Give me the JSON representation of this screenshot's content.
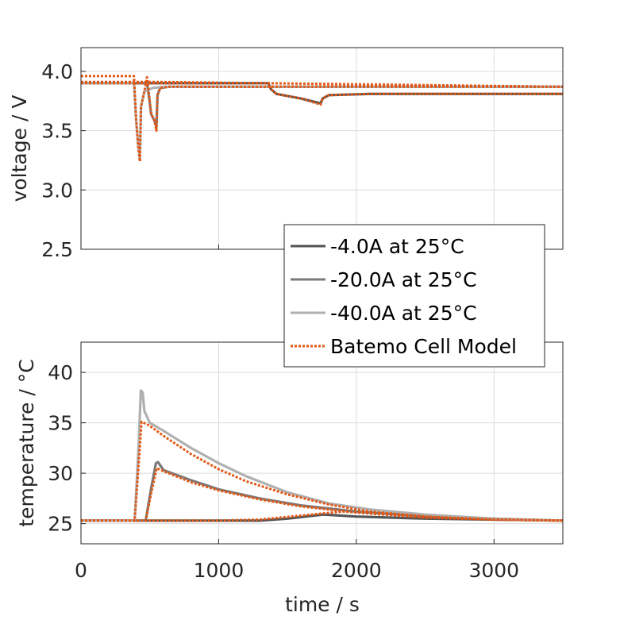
{
  "chart_data": [
    {
      "type": "line",
      "name": "voltage",
      "ylabel": "voltage / V",
      "xlabel": "",
      "xlim": [
        0,
        3500
      ],
      "ylim": [
        2.5,
        4.2
      ],
      "xticks": [
        0,
        1000,
        2000,
        3000
      ],
      "yticks": [
        2.5,
        3.0,
        3.5,
        4.0
      ],
      "ytick_labels": [
        "2.5",
        "3.0",
        "3.5",
        "4.0"
      ],
      "grid": true,
      "series": [
        {
          "name": "-4.0A at 25°C",
          "color": "#545454",
          "style": "solid",
          "points": [
            [
              0,
              3.9
            ],
            [
              1360,
              3.9
            ],
            [
              1380,
              3.85
            ],
            [
              1420,
              3.81
            ],
            [
              1600,
              3.77
            ],
            [
              1740,
              3.73
            ],
            [
              1755,
              3.77
            ],
            [
              1800,
              3.8
            ],
            [
              2100,
              3.81
            ],
            [
              3500,
              3.81
            ]
          ]
        },
        {
          "name": "-20.0A at 25°C",
          "color": "#7a7a7a",
          "style": "solid",
          "points": [
            [
              0,
              3.9
            ],
            [
              480,
              3.9
            ],
            [
              495,
              3.78
            ],
            [
              510,
              3.64
            ],
            [
              535,
              3.58
            ],
            [
              548,
              3.53
            ],
            [
              556,
              3.8
            ],
            [
              575,
              3.86
            ],
            [
              640,
              3.87
            ],
            [
              3500,
              3.87
            ]
          ]
        },
        {
          "name": "-40.0A at 25°C",
          "color": "#b0b0b0",
          "style": "solid",
          "points": [
            [
              0,
              3.9
            ],
            [
              385,
              3.9
            ],
            [
              400,
              3.6
            ],
            [
              415,
              3.38
            ],
            [
              428,
              3.26
            ],
            [
              436,
              3.7
            ],
            [
              460,
              3.83
            ],
            [
              520,
              3.86
            ],
            [
              600,
              3.87
            ],
            [
              3500,
              3.87
            ]
          ]
        },
        {
          "name": "Batemo Cell Model",
          "color": "#E35714",
          "style": "dotted",
          "points": [
            [
              0,
              3.96
            ],
            [
              385,
              3.96
            ],
            [
              400,
              3.6
            ],
            [
              415,
              3.38
            ],
            [
              428,
              3.24
            ],
            [
              436,
              3.7
            ],
            [
              460,
              3.83
            ],
            [
              480,
              3.95
            ],
            [
              495,
              3.8
            ],
            [
              510,
              3.64
            ],
            [
              535,
              3.58
            ],
            [
              548,
              3.5
            ],
            [
              556,
              3.8
            ],
            [
              575,
              3.86
            ],
            [
              640,
              3.87
            ],
            [
              3500,
              3.87
            ]
          ],
          "extra_paths": [
            [
              [
                0,
                3.9
              ],
              [
                1360,
                3.9
              ],
              [
                1380,
                3.85
              ],
              [
                1420,
                3.81
              ],
              [
                1600,
                3.77
              ],
              [
                1740,
                3.72
              ],
              [
                1755,
                3.77
              ],
              [
                1800,
                3.8
              ],
              [
                2100,
                3.81
              ],
              [
                3500,
                3.81
              ]
            ],
            [
              [
                0,
                3.91
              ],
              [
                600,
                3.91
              ],
              [
                3500,
                3.87
              ]
            ]
          ]
        }
      ]
    },
    {
      "type": "line",
      "name": "temperature",
      "ylabel": "temperature / °C",
      "xlabel": "time / s",
      "xlim": [
        0,
        3500
      ],
      "ylim": [
        23,
        43
      ],
      "xticks": [
        0,
        1000,
        2000,
        3000
      ],
      "xtick_labels": [
        "0",
        "1000",
        "2000",
        "3000"
      ],
      "yticks": [
        25,
        30,
        35,
        40
      ],
      "ytick_labels": [
        "25",
        "30",
        "35",
        "40"
      ],
      "grid": true,
      "series": [
        {
          "name": "-4.0A at 25°C",
          "color": "#545454",
          "style": "solid",
          "points": [
            [
              0,
              25.3
            ],
            [
              1300,
              25.3
            ],
            [
              1500,
              25.5
            ],
            [
              1760,
              25.9
            ],
            [
              2000,
              25.7
            ],
            [
              2500,
              25.5
            ],
            [
              3000,
              25.4
            ],
            [
              3500,
              25.3
            ]
          ]
        },
        {
          "name": "-20.0A at 25°C",
          "color": "#7a7a7a",
          "style": "solid",
          "points": [
            [
              0,
              25.3
            ],
            [
              470,
              25.3
            ],
            [
              510,
              28.5
            ],
            [
              545,
              31.0
            ],
            [
              560,
              31.1
            ],
            [
              600,
              30.3
            ],
            [
              800,
              29.3
            ],
            [
              1000,
              28.4
            ],
            [
              1300,
              27.5
            ],
            [
              1600,
              26.8
            ],
            [
              2000,
              26.2
            ],
            [
              2500,
              25.7
            ],
            [
              3000,
              25.5
            ],
            [
              3500,
              25.3
            ]
          ]
        },
        {
          "name": "-40.0A at 25°C",
          "color": "#b0b0b0",
          "style": "solid",
          "points": [
            [
              0,
              25.3
            ],
            [
              390,
              25.3
            ],
            [
              420,
              33.0
            ],
            [
              435,
              38.2
            ],
            [
              448,
              38.0
            ],
            [
              460,
              36.2
            ],
            [
              500,
              35.0
            ],
            [
              600,
              34.2
            ],
            [
              800,
              32.5
            ],
            [
              1000,
              31.0
            ],
            [
              1200,
              29.7
            ],
            [
              1500,
              28.1
            ],
            [
              1800,
              27.0
            ],
            [
              2100,
              26.4
            ],
            [
              2500,
              25.9
            ],
            [
              3000,
              25.5
            ],
            [
              3500,
              25.3
            ]
          ]
        },
        {
          "name": "Batemo Cell Model",
          "color": "#E35714",
          "style": "dotted",
          "points": [
            [
              0,
              25.3
            ],
            [
              390,
              25.3
            ],
            [
              420,
              31.0
            ],
            [
              440,
              35.1
            ],
            [
              500,
              34.7
            ],
            [
              600,
              33.7
            ],
            [
              800,
              31.9
            ],
            [
              1000,
              30.4
            ],
            [
              1200,
              29.2
            ],
            [
              1500,
              27.9
            ],
            [
              1800,
              26.9
            ],
            [
              2100,
              26.2
            ],
            [
              2500,
              25.7
            ],
            [
              3000,
              25.4
            ],
            [
              3500,
              25.3
            ]
          ],
          "extra_paths": [
            [
              [
                0,
                25.3
              ],
              [
                470,
                25.3
              ],
              [
                510,
                28.0
              ],
              [
                550,
                30.5
              ],
              [
                600,
                30.2
              ],
              [
                800,
                29.1
              ],
              [
                1000,
                28.3
              ],
              [
                1300,
                27.4
              ],
              [
                1600,
                26.7
              ],
              [
                2000,
                26.1
              ],
              [
                2500,
                25.6
              ],
              [
                3000,
                25.4
              ],
              [
                3500,
                25.3
              ]
            ],
            [
              [
                0,
                25.3
              ],
              [
                1000,
                25.3
              ],
              [
                1300,
                25.4
              ],
              [
                1600,
                25.8
              ],
              [
                1900,
                26.2
              ],
              [
                2200,
                26.0
              ],
              [
                2600,
                25.6
              ],
              [
                3000,
                25.4
              ],
              [
                3500,
                25.3
              ]
            ]
          ]
        }
      ]
    }
  ],
  "legend": {
    "placement": "center-right",
    "entries": [
      {
        "label": "-4.0A at 25°C",
        "color": "#545454",
        "style": "solid"
      },
      {
        "label": "-20.0A at 25°C",
        "color": "#7a7a7a",
        "style": "solid"
      },
      {
        "label": "-40.0A at 25°C",
        "color": "#b0b0b0",
        "style": "solid"
      },
      {
        "label": "Batemo Cell Model",
        "color": "#E35714",
        "style": "dotted"
      }
    ]
  }
}
